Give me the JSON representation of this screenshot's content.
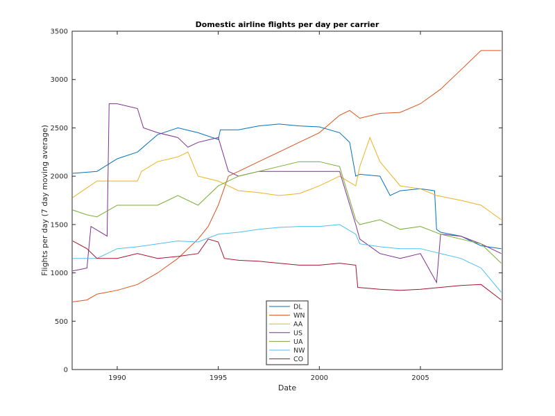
{
  "chart_data": {
    "type": "line",
    "title": "Domestic airline flights per day per carrier",
    "xlabel": "Date",
    "ylabel": "Flights per day (7 day moving average)",
    "xlim": [
      1987.77,
      2009.05
    ],
    "ylim": [
      0,
      3500
    ],
    "xticks": [
      1990,
      1995,
      2000,
      2005
    ],
    "yticks": [
      0,
      500,
      1000,
      1500,
      2000,
      2500,
      3000,
      3500
    ],
    "grid": false,
    "legend_position": "bottom-center",
    "series": [
      {
        "name": "DL",
        "color": "#0072BD",
        "points": [
          [
            1987.8,
            2030
          ],
          [
            1989,
            2050
          ],
          [
            1990,
            2180
          ],
          [
            1991,
            2250
          ],
          [
            1992,
            2430
          ],
          [
            1993,
            2500
          ],
          [
            1994,
            2450
          ],
          [
            1995,
            2380
          ],
          [
            1995.1,
            2480
          ],
          [
            1996,
            2480
          ],
          [
            1997,
            2520
          ],
          [
            1998,
            2540
          ],
          [
            1999,
            2520
          ],
          [
            2000,
            2510
          ],
          [
            2001,
            2450
          ],
          [
            2001.5,
            2350
          ],
          [
            2001.8,
            2000
          ],
          [
            2002,
            2020
          ],
          [
            2003,
            2000
          ],
          [
            2003.5,
            1800
          ],
          [
            2004,
            1850
          ],
          [
            2005,
            1870
          ],
          [
            2005.7,
            1850
          ],
          [
            2005.8,
            1450
          ],
          [
            2006,
            1420
          ],
          [
            2007,
            1380
          ],
          [
            2008,
            1280
          ],
          [
            2009,
            1250
          ]
        ]
      },
      {
        "name": "WN",
        "color": "#D95319",
        "points": [
          [
            1987.8,
            700
          ],
          [
            1988.5,
            720
          ],
          [
            1989,
            780
          ],
          [
            1990,
            820
          ],
          [
            1991,
            880
          ],
          [
            1992,
            1000
          ],
          [
            1993,
            1150
          ],
          [
            1994,
            1350
          ],
          [
            1994.5,
            1480
          ],
          [
            1995,
            1700
          ],
          [
            1995.5,
            2000
          ],
          [
            1996,
            2050
          ],
          [
            1997,
            2150
          ],
          [
            1998,
            2250
          ],
          [
            1999,
            2350
          ],
          [
            2000,
            2450
          ],
          [
            2001,
            2630
          ],
          [
            2001.5,
            2680
          ],
          [
            2002,
            2600
          ],
          [
            2003,
            2650
          ],
          [
            2004,
            2660
          ],
          [
            2005,
            2750
          ],
          [
            2006,
            2900
          ],
          [
            2007,
            3100
          ],
          [
            2008,
            3300
          ],
          [
            2009,
            3300
          ]
        ]
      },
      {
        "name": "AA",
        "color": "#EDB120",
        "points": [
          [
            1987.8,
            1780
          ],
          [
            1989,
            1950
          ],
          [
            1990,
            1950
          ],
          [
            1991,
            1950
          ],
          [
            1991.2,
            2050
          ],
          [
            1992,
            2150
          ],
          [
            1993,
            2200
          ],
          [
            1993.5,
            2250
          ],
          [
            1994,
            2000
          ],
          [
            1995,
            1950
          ],
          [
            1995.5,
            1900
          ],
          [
            1996,
            1850
          ],
          [
            1997,
            1830
          ],
          [
            1998,
            1800
          ],
          [
            1999,
            1820
          ],
          [
            2000,
            1900
          ],
          [
            2001,
            2000
          ],
          [
            2001.8,
            1900
          ],
          [
            2002,
            2100
          ],
          [
            2002.5,
            2400
          ],
          [
            2003,
            2150
          ],
          [
            2004,
            1900
          ],
          [
            2005,
            1870
          ],
          [
            2005.8,
            1800
          ],
          [
            2007,
            1750
          ],
          [
            2008,
            1700
          ],
          [
            2009,
            1550
          ]
        ]
      },
      {
        "name": "US",
        "color": "#7E2F8E",
        "points": [
          [
            1987.8,
            1020
          ],
          [
            1988.5,
            1050
          ],
          [
            1988.7,
            1480
          ],
          [
            1989.5,
            1380
          ],
          [
            1989.6,
            2750
          ],
          [
            1990,
            2750
          ],
          [
            1991,
            2700
          ],
          [
            1991.3,
            2500
          ],
          [
            1992,
            2450
          ],
          [
            1993,
            2400
          ],
          [
            1993.5,
            2300
          ],
          [
            1994,
            2350
          ],
          [
            1995,
            2400
          ],
          [
            1995.5,
            2050
          ],
          [
            1996,
            2000
          ],
          [
            1997,
            2050
          ],
          [
            1998,
            2050
          ],
          [
            1999,
            2050
          ],
          [
            2000,
            2050
          ],
          [
            2001,
            2050
          ],
          [
            2001.8,
            1500
          ],
          [
            2002,
            1350
          ],
          [
            2003,
            1200
          ],
          [
            2004,
            1150
          ],
          [
            2005,
            1200
          ],
          [
            2005.8,
            900
          ],
          [
            2006,
            1400
          ],
          [
            2007,
            1380
          ],
          [
            2008,
            1300
          ],
          [
            2009,
            1200
          ]
        ]
      },
      {
        "name": "UA",
        "color": "#77AC30",
        "points": [
          [
            1987.8,
            1650
          ],
          [
            1988.5,
            1600
          ],
          [
            1989,
            1580
          ],
          [
            1990,
            1700
          ],
          [
            1991,
            1700
          ],
          [
            1992,
            1700
          ],
          [
            1993,
            1800
          ],
          [
            1994,
            1700
          ],
          [
            1995,
            1900
          ],
          [
            1996,
            2000
          ],
          [
            1997,
            2050
          ],
          [
            1998,
            2100
          ],
          [
            1999,
            2150
          ],
          [
            2000,
            2150
          ],
          [
            2001,
            2100
          ],
          [
            2001.8,
            1550
          ],
          [
            2002,
            1500
          ],
          [
            2003,
            1550
          ],
          [
            2004,
            1450
          ],
          [
            2005,
            1480
          ],
          [
            2006,
            1400
          ],
          [
            2007,
            1350
          ],
          [
            2008,
            1300
          ],
          [
            2009,
            1100
          ]
        ]
      },
      {
        "name": "NW",
        "color": "#4DBEEE",
        "points": [
          [
            1987.8,
            1150
          ],
          [
            1989,
            1150
          ],
          [
            1990,
            1250
          ],
          [
            1991,
            1270
          ],
          [
            1992,
            1300
          ],
          [
            1993,
            1330
          ],
          [
            1994,
            1320
          ],
          [
            1995,
            1400
          ],
          [
            1996,
            1420
          ],
          [
            1997,
            1450
          ],
          [
            1998,
            1470
          ],
          [
            1999,
            1480
          ],
          [
            2000,
            1480
          ],
          [
            2001,
            1500
          ],
          [
            2001.8,
            1400
          ],
          [
            2002,
            1300
          ],
          [
            2003,
            1270
          ],
          [
            2004,
            1250
          ],
          [
            2005,
            1250
          ],
          [
            2006,
            1200
          ],
          [
            2007,
            1150
          ],
          [
            2008,
            1050
          ],
          [
            2009,
            800
          ]
        ]
      },
      {
        "name": "CO",
        "color": "#A2142F",
        "points": [
          [
            1987.8,
            1330
          ],
          [
            1988.5,
            1250
          ],
          [
            1989,
            1150
          ],
          [
            1990,
            1150
          ],
          [
            1991,
            1200
          ],
          [
            1992,
            1150
          ],
          [
            1993,
            1170
          ],
          [
            1994,
            1200
          ],
          [
            1994.5,
            1350
          ],
          [
            1995,
            1320
          ],
          [
            1995.3,
            1150
          ],
          [
            1996,
            1130
          ],
          [
            1997,
            1120
          ],
          [
            1998,
            1100
          ],
          [
            1999,
            1080
          ],
          [
            2000,
            1080
          ],
          [
            2001,
            1100
          ],
          [
            2001.8,
            1080
          ],
          [
            2001.9,
            850
          ],
          [
            2003,
            830
          ],
          [
            2004,
            820
          ],
          [
            2005,
            830
          ],
          [
            2006,
            850
          ],
          [
            2007,
            870
          ],
          [
            2008,
            880
          ],
          [
            2009,
            720
          ]
        ]
      }
    ]
  }
}
